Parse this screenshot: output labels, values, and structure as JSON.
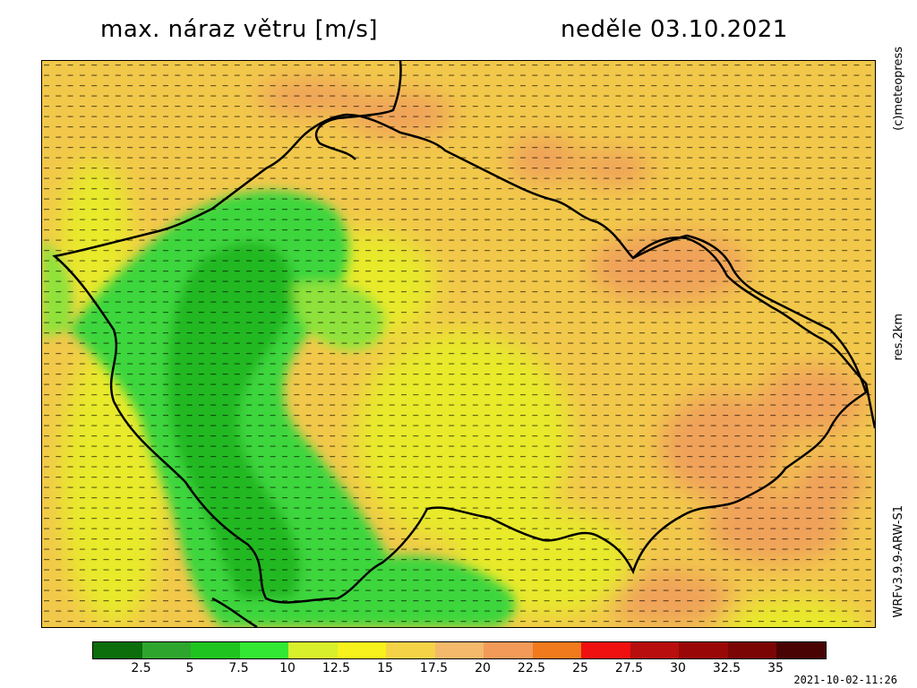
{
  "title": {
    "variable": "max. náraz větru [m/s]",
    "date": "neděle 03.10.2021"
  },
  "side_labels": {
    "copyright": "(c)meteopress",
    "resolution": "res.2km",
    "model": "WRFv3.9.9-ARW-S1"
  },
  "timestamp": "2021-10-02-11:26",
  "legend": {
    "colors": [
      "#0b6e0b",
      "#2ea62e",
      "#1fc41f",
      "#33e833",
      "#d8ef2c",
      "#f8f21c",
      "#f5d347",
      "#f4b96b",
      "#f39a58",
      "#f17a1c",
      "#f01010",
      "#b80e0e",
      "#9a0707",
      "#7b0505",
      "#4a0303"
    ],
    "ticks": [
      "2.5",
      "5",
      "7.5",
      "10",
      "12.5",
      "15",
      "17.5",
      "20",
      "22.5",
      "25",
      "27.5",
      "30",
      "32.5",
      "35"
    ]
  },
  "map": {
    "colors": {
      "green_dark": "#22b822",
      "green": "#3ed63e",
      "light_green": "#8fe23a",
      "yellow": "#e8ea2a",
      "gold": "#f2c84b",
      "orange": "#f0a25a",
      "orange_strong": "#f39a58",
      "border": "#000000"
    }
  }
}
